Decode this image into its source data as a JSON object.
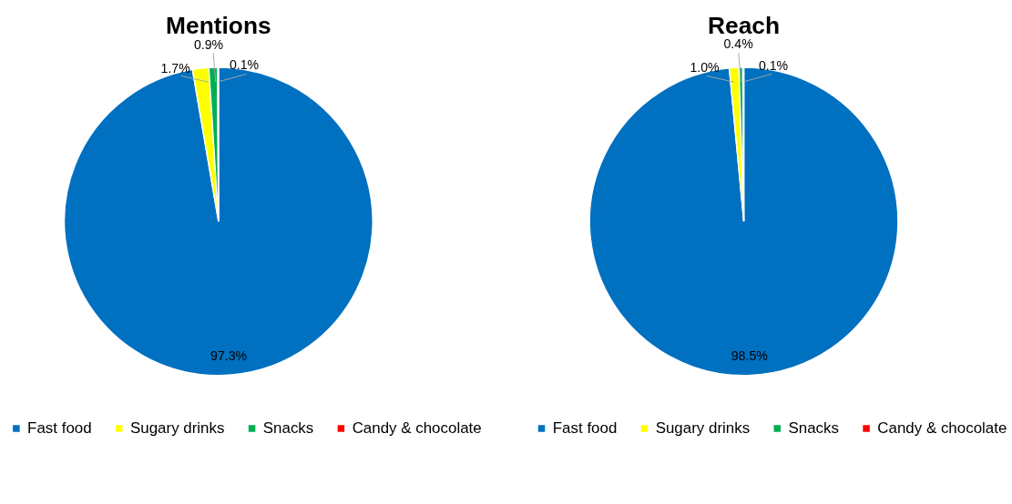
{
  "chart_data": [
    {
      "type": "pie",
      "title": "Mentions",
      "categories": [
        "Fast food",
        "Sugary drinks",
        "Snacks",
        "Candy & chocolate"
      ],
      "values": [
        97.3,
        1.7,
        0.9,
        0.1
      ],
      "colors": [
        "#0070c0",
        "#ffff00",
        "#00b050",
        "#ff0000"
      ],
      "value_labels": [
        "97.3%",
        "1.7%",
        "0.9%",
        "0.1%"
      ],
      "legend": "bottom"
    },
    {
      "type": "pie",
      "title": "Reach",
      "categories": [
        "Fast food",
        "Sugary drinks",
        "Snacks",
        "Candy & chocolate"
      ],
      "values": [
        98.5,
        1.0,
        0.4,
        0.1
      ],
      "colors": [
        "#0070c0",
        "#ffff00",
        "#00b050",
        "#ff0000"
      ],
      "value_labels": [
        "98.5%",
        "1.0%",
        "0.4%",
        "0.1%"
      ],
      "legend": "bottom"
    }
  ]
}
